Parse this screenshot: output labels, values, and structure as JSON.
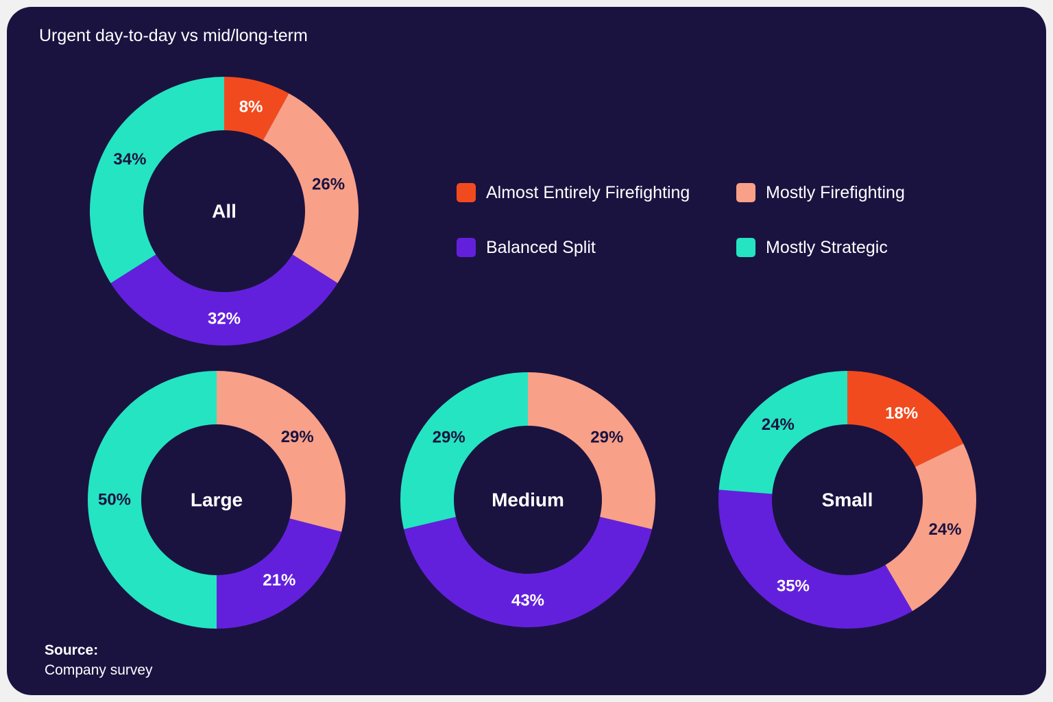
{
  "title": "Urgent day-to-day vs mid/long-term",
  "colors": {
    "background": "#1a1340",
    "Almost Entirely Firefighting": "#f24a1f",
    "Mostly Firefighting": "#f9a089",
    "Balanced Split": "#6320dc",
    "Mostly Strategic": "#25e4c2"
  },
  "legend": [
    {
      "label": "Almost Entirely Firefighting",
      "color": "#f24a1f"
    },
    {
      "label": "Mostly Firefighting",
      "color": "#f9a089"
    },
    {
      "label": "Balanced Split",
      "color": "#6320dc"
    },
    {
      "label": "Mostly Strategic",
      "color": "#25e4c2"
    }
  ],
  "chart_data": [
    {
      "type": "pie",
      "center_label": "All",
      "categories": [
        "Almost Entirely Firefighting",
        "Mostly Firefighting",
        "Balanced Split",
        "Mostly Strategic"
      ],
      "values": [
        8,
        26,
        32,
        34
      ],
      "labels": [
        "8%",
        "26%",
        "32%",
        "34%"
      ]
    },
    {
      "type": "pie",
      "center_label": "Large",
      "categories": [
        "Almost Entirely Firefighting",
        "Mostly Firefighting",
        "Balanced Split",
        "Mostly Strategic"
      ],
      "values": [
        0,
        29,
        21,
        50
      ],
      "labels": [
        "",
        "29%",
        "21%",
        "50%"
      ]
    },
    {
      "type": "pie",
      "center_label": "Medium",
      "categories": [
        "Almost Entirely Firefighting",
        "Mostly Firefighting",
        "Balanced Split",
        "Mostly Strategic"
      ],
      "values": [
        0,
        29,
        43,
        29
      ],
      "labels": [
        "",
        "29%",
        "43%",
        "29%"
      ]
    },
    {
      "type": "pie",
      "center_label": "Small",
      "categories": [
        "Almost Entirely Firefighting",
        "Mostly Firefighting",
        "Balanced Split",
        "Mostly Strategic"
      ],
      "values": [
        18,
        24,
        35,
        24
      ],
      "labels": [
        "18%",
        "24%",
        "35%",
        "24%"
      ]
    }
  ],
  "source": {
    "label": "Source:",
    "text": "Company survey"
  }
}
